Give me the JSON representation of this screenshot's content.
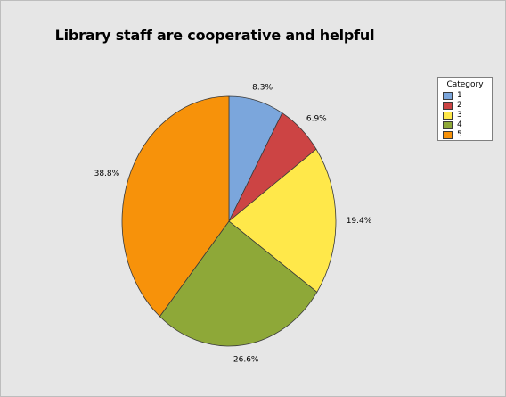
{
  "chart_data": {
    "type": "pie",
    "title": "Library staff are cooperative and helpful",
    "legend_title": "Category",
    "legend_position": "top-right",
    "categories": [
      "1",
      "2",
      "3",
      "4",
      "5"
    ],
    "values": [
      8.3,
      6.9,
      19.4,
      26.6,
      38.8
    ],
    "labels": [
      "8.3%",
      "6.9%",
      "19.4%",
      "26.6%",
      "38.8%"
    ],
    "colors": [
      "#7ba6dc",
      "#cc4444",
      "#ffe84a",
      "#8ea838",
      "#f7920a"
    ],
    "start_angle_deg": 0,
    "direction": "clockwise"
  }
}
